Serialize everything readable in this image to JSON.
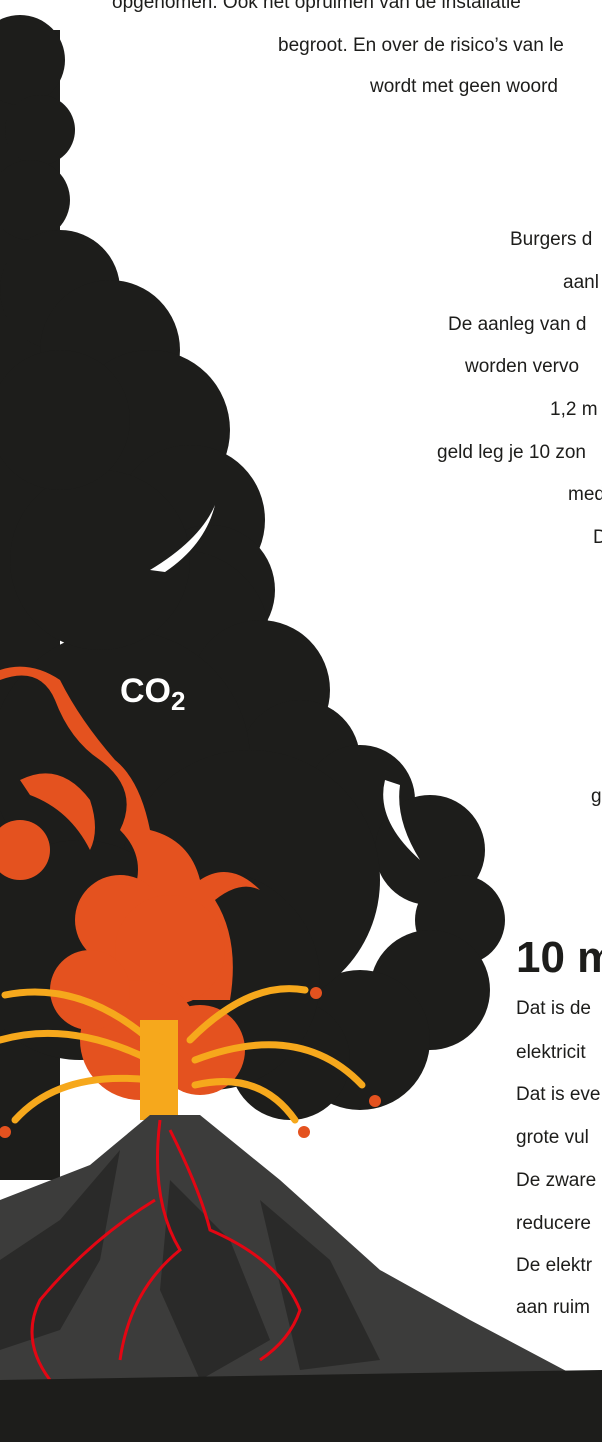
{
  "top_text": [
    "opgenomen. Ook het opruimen van de installatie",
    "begroot. En over de risico’s van le",
    "wordt met geen woord"
  ],
  "middle_text": [
    "Burgers d",
    "aanl",
    "De aanleg van d",
    "worden vervo",
    "1,2 m",
    "geld leg je 10 zon",
    "med",
    "D",
    "g"
  ],
  "label": {
    "main": "CO",
    "sub": "2"
  },
  "section": {
    "heading": "10 m",
    "lines": [
      "Dat is de",
      "elektricit",
      "Dat is eve",
      "grote vul",
      "De zware",
      "reducere",
      "De elektr",
      "aan ruim"
    ]
  }
}
